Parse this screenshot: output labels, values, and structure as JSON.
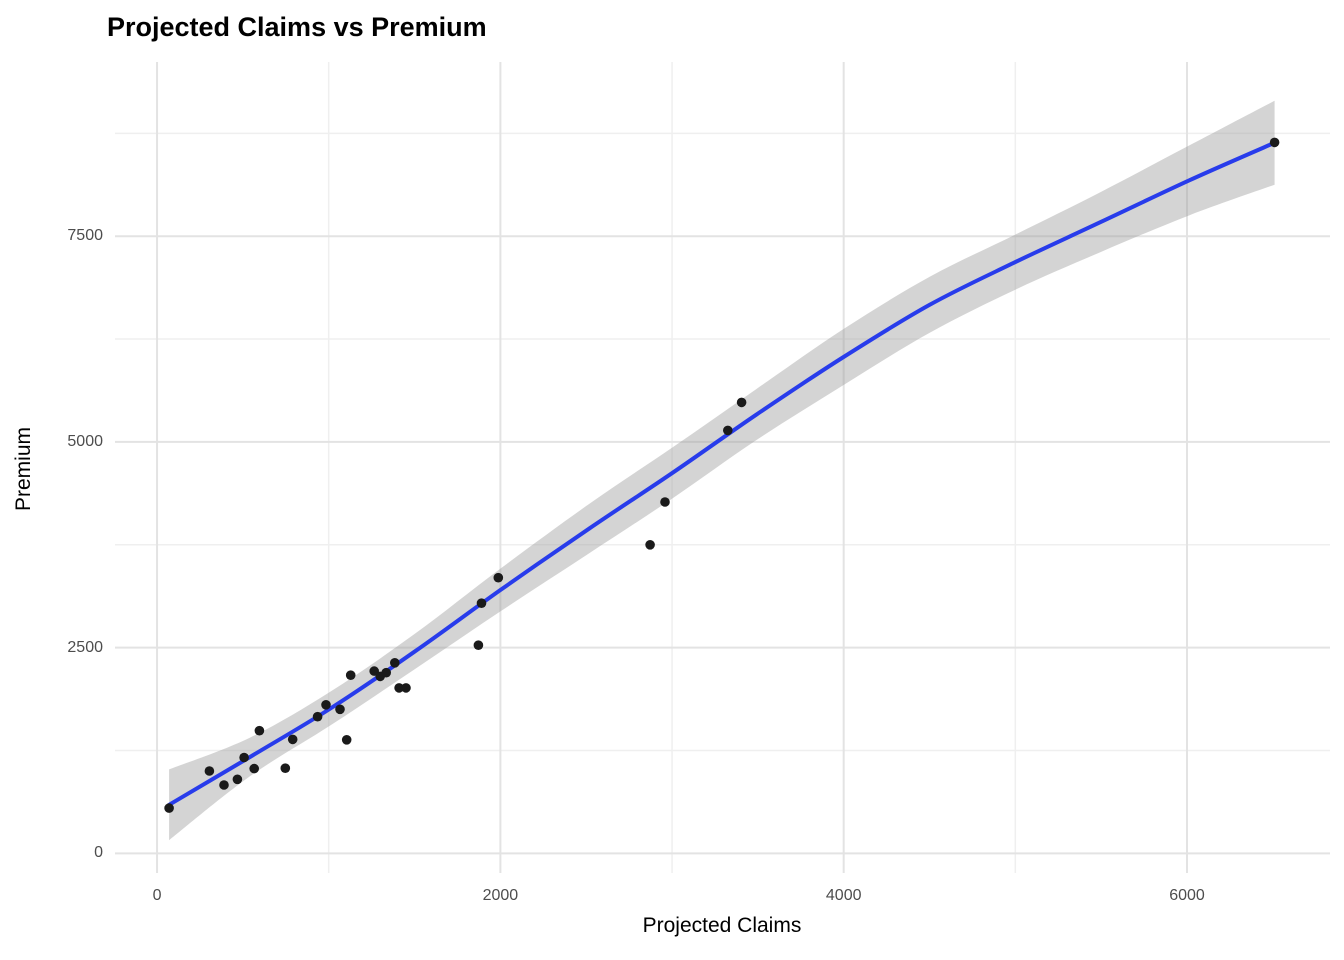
{
  "chart_data": {
    "type": "scatter",
    "title": "Projected Claims vs Premium",
    "xlabel": "Projected Claims",
    "ylabel": "Premium",
    "x_ticks": [
      0,
      2000,
      4000,
      6000
    ],
    "x_minor_gridlines": [
      1000,
      3000,
      5000
    ],
    "y_ticks": [
      0,
      2500,
      5000,
      7500
    ],
    "y_minor_gridlines": [
      1250,
      3750,
      6250,
      8750
    ],
    "xlim": [
      -245,
      6833
    ],
    "ylim": [
      -239,
      9617
    ],
    "grid": true,
    "legend": "none",
    "points": [
      [
        70,
        550
      ],
      [
        305,
        1000
      ],
      [
        390,
        830
      ],
      [
        468,
        900
      ],
      [
        507,
        1165
      ],
      [
        566,
        1030
      ],
      [
        596,
        1490
      ],
      [
        747,
        1035
      ],
      [
        790,
        1385
      ],
      [
        935,
        1660
      ],
      [
        984,
        1805
      ],
      [
        1066,
        1750
      ],
      [
        1105,
        1380
      ],
      [
        1128,
        2165
      ],
      [
        1265,
        2215
      ],
      [
        1300,
        2150
      ],
      [
        1335,
        2195
      ],
      [
        1385,
        2315
      ],
      [
        1410,
        2010
      ],
      [
        1450,
        2010
      ],
      [
        1872,
        2530
      ],
      [
        1890,
        3040
      ],
      [
        1988,
        3350
      ],
      [
        2872,
        3750
      ],
      [
        2959,
        4270
      ],
      [
        3325,
        5140
      ],
      [
        3405,
        5480
      ],
      [
        6510,
        8640
      ]
    ],
    "smooth_line": [
      [
        70,
        590
      ],
      [
        540,
        1170
      ],
      [
        1010,
        1760
      ],
      [
        1500,
        2450
      ],
      [
        2000,
        3200
      ],
      [
        2520,
        3950
      ],
      [
        3000,
        4620
      ],
      [
        3490,
        5330
      ],
      [
        3990,
        6020
      ],
      [
        4500,
        6665
      ],
      [
        5000,
        7185
      ],
      [
        5495,
        7670
      ],
      [
        6015,
        8180
      ],
      [
        6510,
        8635
      ]
    ],
    "ribbon_half_width": [
      [
        70,
        430
      ],
      [
        540,
        235
      ],
      [
        1010,
        205
      ],
      [
        1500,
        215
      ],
      [
        2000,
        260
      ],
      [
        2520,
        300
      ],
      [
        3000,
        310
      ],
      [
        3490,
        310
      ],
      [
        3990,
        340
      ],
      [
        4500,
        340
      ],
      [
        5000,
        335
      ],
      [
        5495,
        365
      ],
      [
        6015,
        425
      ],
      [
        6510,
        510
      ]
    ],
    "colors": {
      "point": "#1a1a1a",
      "smooth_line": "#283CEB",
      "ribbon": "#999999",
      "grid_major": "#e3e3e3",
      "grid_minor": "#efefef",
      "tick_label": "#4d4d4d",
      "axis_title": "#000000",
      "title": "#000000"
    }
  }
}
